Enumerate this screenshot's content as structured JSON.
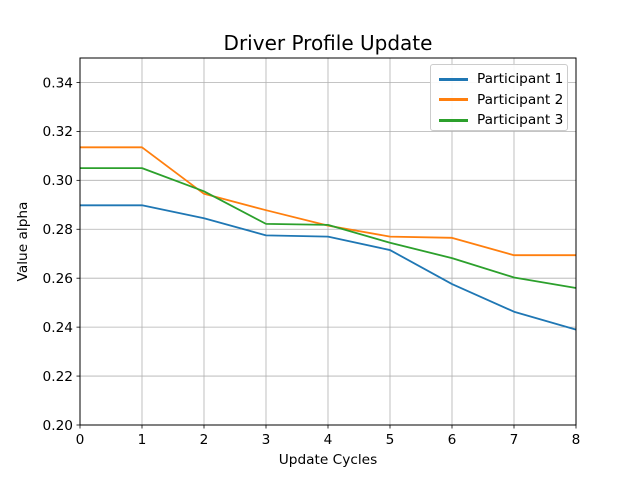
{
  "chart_data": {
    "type": "line",
    "title": "Driver Profile Update",
    "xlabel": "Update Cycles",
    "ylabel": "Value alpha",
    "x": [
      0,
      1,
      2,
      3,
      4,
      5,
      6,
      7,
      8
    ],
    "series": [
      {
        "name": "Participant 1",
        "color": "#1f77b4",
        "values": [
          0.2898,
          0.2898,
          0.2845,
          0.2775,
          0.277,
          0.2715,
          0.2576,
          0.2463,
          0.239
        ]
      },
      {
        "name": "Participant 2",
        "color": "#ff7f0e",
        "values": [
          0.3135,
          0.3135,
          0.2945,
          0.2878,
          0.2815,
          0.277,
          0.2765,
          0.2694,
          0.2694
        ]
      },
      {
        "name": "Participant 3",
        "color": "#2ca02c",
        "values": [
          0.305,
          0.305,
          0.2955,
          0.2822,
          0.2818,
          0.2745,
          0.2682,
          0.2603,
          0.256
        ]
      }
    ],
    "xlim": [
      0,
      8
    ],
    "ylim": [
      0.2,
      0.35
    ],
    "xticks": [
      0,
      1,
      2,
      3,
      4,
      5,
      6,
      7,
      8
    ],
    "xtick_labels": [
      "0",
      "1",
      "2",
      "3",
      "4",
      "5",
      "6",
      "7",
      "8"
    ],
    "yticks": [
      0.2,
      0.22,
      0.24,
      0.26,
      0.28,
      0.3,
      0.32,
      0.34
    ],
    "ytick_labels": [
      "0.20",
      "0.22",
      "0.24",
      "0.26",
      "0.28",
      "0.30",
      "0.32",
      "0.34"
    ],
    "grid": true,
    "legend_position": "upper right",
    "colors": {
      "grid": "#b0b0b0",
      "spine": "#000000",
      "background": "#ffffff",
      "text": "#000000"
    }
  }
}
